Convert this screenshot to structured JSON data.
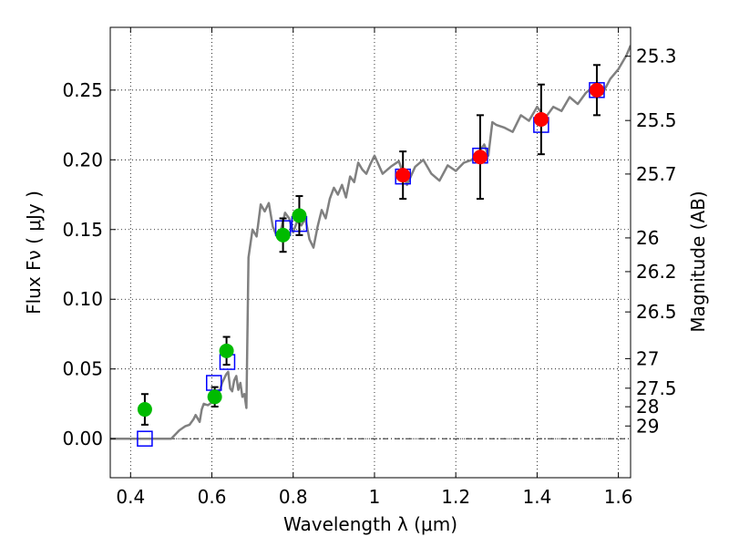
{
  "chart_data": {
    "type": "scatter",
    "xlabel": "Wavelength  λ (μm)",
    "ylabel": "Flux  Fν  ( μJy )",
    "ylabel_right": "Magnitude (AB)",
    "xlim": [
      0.35,
      1.63
    ],
    "ylim": [
      -0.028,
      0.295
    ],
    "grid": true,
    "x_ticks": [
      0.4,
      0.6,
      0.8,
      1.0,
      1.2,
      1.4,
      1.6
    ],
    "x_tick_labels": [
      "0.4",
      "0.6",
      "0.8",
      "1",
      "1.2",
      "1.4",
      "1.6"
    ],
    "y_ticks": [
      0.0,
      0.05,
      0.1,
      0.15,
      0.2,
      0.25
    ],
    "y_tick_labels": [
      "0.00",
      "0.05",
      "0.10",
      "0.15",
      "0.20",
      "0.25"
    ],
    "right_ticks": [
      {
        "label": "25.3",
        "flux": 0.2743
      },
      {
        "label": "25.5",
        "flux": 0.2282
      },
      {
        "label": "25.7",
        "flux": 0.1898
      },
      {
        "label": "26",
        "flux": 0.144
      },
      {
        "label": "26.2",
        "flux": 0.1198
      },
      {
        "label": "26.5",
        "flux": 0.0909
      },
      {
        "label": "27",
        "flux": 0.0574
      },
      {
        "label": "27.5",
        "flux": 0.0362
      },
      {
        "label": "28",
        "flux": 0.0229
      },
      {
        "label": "29",
        "flux": 0.0091
      }
    ],
    "colors": {
      "model": "#808080",
      "green": "#00bb00",
      "red": "#ff0000",
      "box": "#0000ff",
      "errorbar": "#000000"
    },
    "series": [
      {
        "marker": "line",
        "x": [
          0.35,
          0.5,
          0.52,
          0.535,
          0.545,
          0.555,
          0.56,
          0.57,
          0.575,
          0.58,
          0.59,
          0.6,
          0.605,
          0.61,
          0.615,
          0.62,
          0.625,
          0.63,
          0.635,
          0.64,
          0.645,
          0.65,
          0.655,
          0.66,
          0.665,
          0.67,
          0.675,
          0.68,
          0.685,
          0.69,
          0.7,
          0.71,
          0.72,
          0.73,
          0.74,
          0.75,
          0.76,
          0.77,
          0.78,
          0.79,
          0.8,
          0.81,
          0.82,
          0.83,
          0.84,
          0.85,
          0.86,
          0.87,
          0.88,
          0.89,
          0.9,
          0.91,
          0.92,
          0.93,
          0.94,
          0.95,
          0.96,
          0.97,
          0.98,
          0.99,
          1.0,
          1.02,
          1.04,
          1.06,
          1.08,
          1.1,
          1.12,
          1.14,
          1.16,
          1.18,
          1.2,
          1.22,
          1.24,
          1.26,
          1.27,
          1.28,
          1.29,
          1.3,
          1.32,
          1.34,
          1.36,
          1.38,
          1.4,
          1.42,
          1.44,
          1.46,
          1.48,
          1.5,
          1.52,
          1.54,
          1.56,
          1.58,
          1.6,
          1.62,
          1.63
        ],
        "y": [
          0.0,
          0.0,
          0.006,
          0.009,
          0.01,
          0.014,
          0.017,
          0.012,
          0.021,
          0.025,
          0.024,
          0.026,
          0.028,
          0.03,
          0.031,
          0.035,
          0.04,
          0.043,
          0.046,
          0.048,
          0.036,
          0.034,
          0.042,
          0.045,
          0.035,
          0.04,
          0.03,
          0.032,
          0.022,
          0.13,
          0.15,
          0.145,
          0.168,
          0.163,
          0.169,
          0.152,
          0.145,
          0.15,
          0.162,
          0.158,
          0.148,
          0.156,
          0.153,
          0.158,
          0.143,
          0.137,
          0.152,
          0.164,
          0.158,
          0.172,
          0.18,
          0.175,
          0.182,
          0.173,
          0.188,
          0.184,
          0.198,
          0.193,
          0.19,
          0.197,
          0.203,
          0.19,
          0.195,
          0.199,
          0.182,
          0.195,
          0.2,
          0.19,
          0.185,
          0.196,
          0.192,
          0.198,
          0.2,
          0.207,
          0.211,
          0.203,
          0.227,
          0.225,
          0.223,
          0.22,
          0.232,
          0.228,
          0.238,
          0.23,
          0.238,
          0.235,
          0.245,
          0.24,
          0.248,
          0.253,
          0.247,
          0.258,
          0.265,
          0.275,
          0.282
        ]
      },
      {
        "marker": "square",
        "x": [
          0.435,
          0.605,
          0.638,
          0.775,
          0.815,
          1.07,
          1.26,
          1.41,
          1.547
        ],
        "y": [
          0.0,
          0.04,
          0.055,
          0.151,
          0.154,
          0.188,
          0.203,
          0.225,
          0.25
        ]
      },
      {
        "marker": "circle-green",
        "x": [
          0.435,
          0.607,
          0.636,
          0.775,
          0.815
        ],
        "y": [
          0.021,
          0.03,
          0.063,
          0.146,
          0.16
        ],
        "err": [
          0.011,
          0.007,
          0.01,
          0.012,
          0.014
        ]
      },
      {
        "marker": "circle-red",
        "x": [
          1.07,
          1.26,
          1.41,
          1.547
        ],
        "y": [
          0.189,
          0.202,
          0.229,
          0.25
        ],
        "err": [
          0.017,
          0.03,
          0.025,
          0.018
        ]
      }
    ]
  }
}
